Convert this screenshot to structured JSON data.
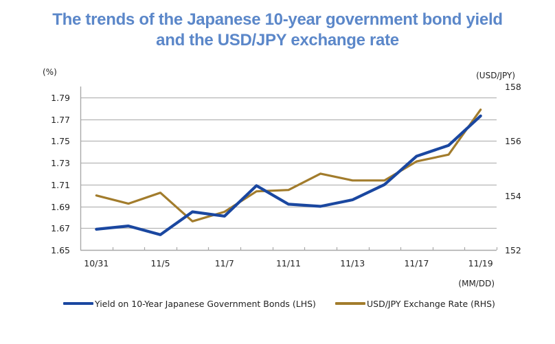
{
  "chart_data": {
    "type": "line",
    "title": "The trends of the Japanese 10-year government bond yield and the USD/JPY exchange rate",
    "title_lines": [
      "The trends of the Japanese 10-year government bond yield",
      "and the USD/JPY exchange rate"
    ],
    "xlabel": "(MM/DD)",
    "ylabel_left": "(%)",
    "ylabel_right": "(USD/JPY)",
    "category_count": 13,
    "x_tick_labels": [
      {
        "index": 0,
        "label": "10/31"
      },
      {
        "index": 2,
        "label": "11/5"
      },
      {
        "index": 4,
        "label": "11/7"
      },
      {
        "index": 6,
        "label": "11/11"
      },
      {
        "index": 8,
        "label": "11/13"
      },
      {
        "index": 10,
        "label": "11/17"
      },
      {
        "index": 12,
        "label": "11/19"
      }
    ],
    "y_left": {
      "range": [
        1.65,
        1.8
      ],
      "ticks": [
        "1.65",
        "1.67",
        "1.69",
        "1.71",
        "1.73",
        "1.75",
        "1.77",
        "1.79"
      ],
      "tick_values": [
        1.65,
        1.67,
        1.69,
        1.71,
        1.73,
        1.75,
        1.77,
        1.79
      ]
    },
    "y_right": {
      "range": [
        152,
        158
      ],
      "ticks": [
        "152",
        "154",
        "156",
        "158"
      ],
      "tick_values": [
        152,
        154,
        156,
        158
      ]
    },
    "grid": true,
    "legend_position": "bottom",
    "series": [
      {
        "name": "Yield on 10-Year Japanese Government Bonds (LHS)",
        "axis": "left",
        "color": "#1a47a0",
        "values": [
          1.669,
          1.672,
          1.664,
          1.685,
          1.681,
          1.709,
          1.692,
          1.69,
          1.696,
          1.71,
          1.736,
          1.746,
          1.773
        ]
      },
      {
        "name": "USD/JPY Exchange Rate (RHS)",
        "axis": "right",
        "color": "#a27c2c",
        "values": [
          154.0,
          153.7,
          154.1,
          153.05,
          153.4,
          154.15,
          154.2,
          154.8,
          154.55,
          154.55,
          155.25,
          155.5,
          157.15
        ]
      }
    ]
  },
  "colors": {
    "title": "#5b87c9",
    "grid": "#b4b4b4",
    "axis": "#a8a8a8"
  }
}
